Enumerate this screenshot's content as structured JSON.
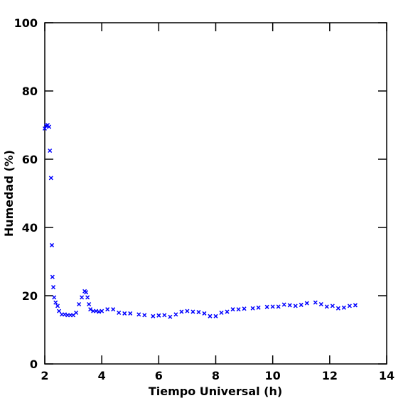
{
  "chart_data": {
    "type": "scatter",
    "xlabel": "Tiempo Universal (h)",
    "ylabel": "Humedad (%)",
    "xlim": [
      2,
      14
    ],
    "ylim": [
      0,
      100
    ],
    "xticks": [
      2,
      4,
      6,
      8,
      10,
      12,
      14
    ],
    "yticks": [
      0,
      20,
      40,
      60,
      80,
      100
    ],
    "color": "#0000ff",
    "x": [
      2.0,
      2.05,
      2.1,
      2.15,
      2.18,
      2.22,
      2.25,
      2.27,
      2.3,
      2.33,
      2.38,
      2.45,
      2.5,
      2.6,
      2.7,
      2.8,
      2.9,
      3.0,
      3.1,
      3.2,
      3.3,
      3.4,
      3.45,
      3.5,
      3.55,
      3.6,
      3.7,
      3.8,
      3.9,
      4.0,
      4.2,
      4.4,
      4.6,
      4.8,
      5.0,
      5.3,
      5.5,
      5.8,
      6.0,
      6.2,
      6.4,
      6.6,
      6.8,
      7.0,
      7.2,
      7.4,
      7.6,
      7.8,
      8.0,
      8.2,
      8.4,
      8.6,
      8.8,
      9.0,
      9.3,
      9.5,
      9.8,
      10.0,
      10.2,
      10.4,
      10.6,
      10.8,
      11.0,
      11.2,
      11.5,
      11.7,
      11.9,
      12.1,
      12.3,
      12.5,
      12.7,
      12.9
    ],
    "values": [
      69,
      69.8,
      70,
      69.5,
      62.5,
      54.5,
      34.8,
      25.5,
      22.5,
      19.5,
      18,
      17,
      15.5,
      14.5,
      14.5,
      14.3,
      14.3,
      14.3,
      15,
      17.5,
      19.5,
      21.3,
      21,
      19.5,
      17.5,
      16,
      15.5,
      15.5,
      15.3,
      15.5,
      16,
      16,
      15,
      14.8,
      14.8,
      14.5,
      14.3,
      14,
      14.2,
      14.3,
      13.8,
      14.5,
      15.3,
      15.5,
      15.3,
      15.2,
      14.8,
      14,
      14,
      15,
      15.3,
      16,
      16,
      16.2,
      16.3,
      16.5,
      16.7,
      16.8,
      16.8,
      17.4,
      17.2,
      17,
      17.3,
      17.8,
      18,
      17.5,
      16.8,
      17,
      16.3,
      16.5,
      17,
      17.2
    ]
  }
}
